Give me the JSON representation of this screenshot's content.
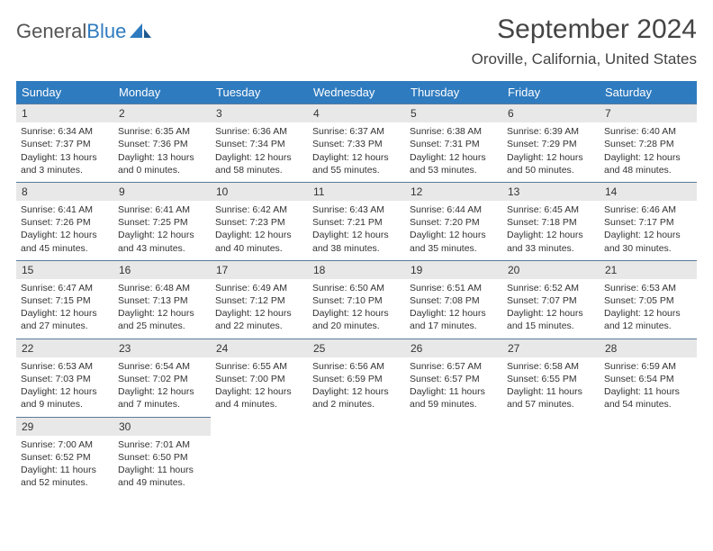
{
  "logo": {
    "text_gray": "General",
    "text_blue": "Blue"
  },
  "title": "September 2024",
  "location": "Oroville, California, United States",
  "colors": {
    "header_bg": "#2f7bbf",
    "header_fg": "#ffffff",
    "cell_border": "#5a7a9a",
    "daynum_bg": "#e8e8e8",
    "text": "#333333",
    "page_bg": "#ffffff"
  },
  "days_of_week": [
    "Sunday",
    "Monday",
    "Tuesday",
    "Wednesday",
    "Thursday",
    "Friday",
    "Saturday"
  ],
  "grid": {
    "columns": 7,
    "rows": 5,
    "first_day_column": 0
  },
  "days": [
    {
      "n": 1,
      "sunrise": "6:34 AM",
      "sunset": "7:37 PM",
      "day_h": 13,
      "day_m": 3
    },
    {
      "n": 2,
      "sunrise": "6:35 AM",
      "sunset": "7:36 PM",
      "day_h": 13,
      "day_m": 0
    },
    {
      "n": 3,
      "sunrise": "6:36 AM",
      "sunset": "7:34 PM",
      "day_h": 12,
      "day_m": 58
    },
    {
      "n": 4,
      "sunrise": "6:37 AM",
      "sunset": "7:33 PM",
      "day_h": 12,
      "day_m": 55
    },
    {
      "n": 5,
      "sunrise": "6:38 AM",
      "sunset": "7:31 PM",
      "day_h": 12,
      "day_m": 53
    },
    {
      "n": 6,
      "sunrise": "6:39 AM",
      "sunset": "7:29 PM",
      "day_h": 12,
      "day_m": 50
    },
    {
      "n": 7,
      "sunrise": "6:40 AM",
      "sunset": "7:28 PM",
      "day_h": 12,
      "day_m": 48
    },
    {
      "n": 8,
      "sunrise": "6:41 AM",
      "sunset": "7:26 PM",
      "day_h": 12,
      "day_m": 45
    },
    {
      "n": 9,
      "sunrise": "6:41 AM",
      "sunset": "7:25 PM",
      "day_h": 12,
      "day_m": 43
    },
    {
      "n": 10,
      "sunrise": "6:42 AM",
      "sunset": "7:23 PM",
      "day_h": 12,
      "day_m": 40
    },
    {
      "n": 11,
      "sunrise": "6:43 AM",
      "sunset": "7:21 PM",
      "day_h": 12,
      "day_m": 38
    },
    {
      "n": 12,
      "sunrise": "6:44 AM",
      "sunset": "7:20 PM",
      "day_h": 12,
      "day_m": 35
    },
    {
      "n": 13,
      "sunrise": "6:45 AM",
      "sunset": "7:18 PM",
      "day_h": 12,
      "day_m": 33
    },
    {
      "n": 14,
      "sunrise": "6:46 AM",
      "sunset": "7:17 PM",
      "day_h": 12,
      "day_m": 30
    },
    {
      "n": 15,
      "sunrise": "6:47 AM",
      "sunset": "7:15 PM",
      "day_h": 12,
      "day_m": 27
    },
    {
      "n": 16,
      "sunrise": "6:48 AM",
      "sunset": "7:13 PM",
      "day_h": 12,
      "day_m": 25
    },
    {
      "n": 17,
      "sunrise": "6:49 AM",
      "sunset": "7:12 PM",
      "day_h": 12,
      "day_m": 22
    },
    {
      "n": 18,
      "sunrise": "6:50 AM",
      "sunset": "7:10 PM",
      "day_h": 12,
      "day_m": 20
    },
    {
      "n": 19,
      "sunrise": "6:51 AM",
      "sunset": "7:08 PM",
      "day_h": 12,
      "day_m": 17
    },
    {
      "n": 20,
      "sunrise": "6:52 AM",
      "sunset": "7:07 PM",
      "day_h": 12,
      "day_m": 15
    },
    {
      "n": 21,
      "sunrise": "6:53 AM",
      "sunset": "7:05 PM",
      "day_h": 12,
      "day_m": 12
    },
    {
      "n": 22,
      "sunrise": "6:53 AM",
      "sunset": "7:03 PM",
      "day_h": 12,
      "day_m": 9
    },
    {
      "n": 23,
      "sunrise": "6:54 AM",
      "sunset": "7:02 PM",
      "day_h": 12,
      "day_m": 7
    },
    {
      "n": 24,
      "sunrise": "6:55 AM",
      "sunset": "7:00 PM",
      "day_h": 12,
      "day_m": 4
    },
    {
      "n": 25,
      "sunrise": "6:56 AM",
      "sunset": "6:59 PM",
      "day_h": 12,
      "day_m": 2
    },
    {
      "n": 26,
      "sunrise": "6:57 AM",
      "sunset": "6:57 PM",
      "day_h": 11,
      "day_m": 59
    },
    {
      "n": 27,
      "sunrise": "6:58 AM",
      "sunset": "6:55 PM",
      "day_h": 11,
      "day_m": 57
    },
    {
      "n": 28,
      "sunrise": "6:59 AM",
      "sunset": "6:54 PM",
      "day_h": 11,
      "day_m": 54
    },
    {
      "n": 29,
      "sunrise": "7:00 AM",
      "sunset": "6:52 PM",
      "day_h": 11,
      "day_m": 52
    },
    {
      "n": 30,
      "sunrise": "7:01 AM",
      "sunset": "6:50 PM",
      "day_h": 11,
      "day_m": 49
    }
  ],
  "labels": {
    "sunrise": "Sunrise:",
    "sunset": "Sunset:",
    "daylight": "Daylight:",
    "hours": "hours",
    "and": "and",
    "minutes": "minutes."
  }
}
